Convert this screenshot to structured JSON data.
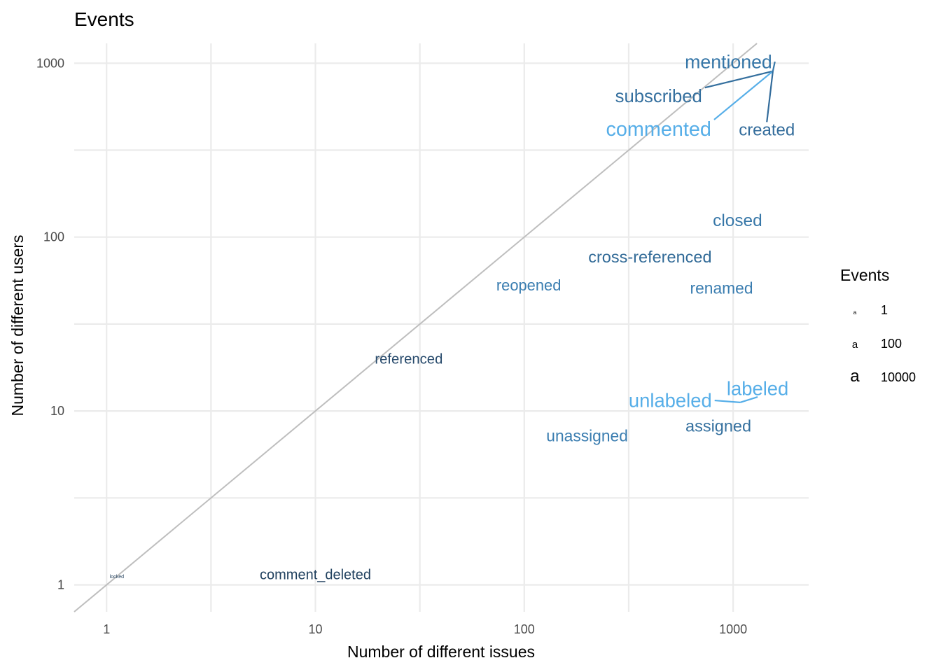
{
  "chart_data": {
    "type": "scatter",
    "title": "Events",
    "xlabel": "Number of different issues",
    "ylabel": "Number of different users",
    "x_scale": "log10",
    "y_scale": "log10",
    "xlim": [
      0.7,
      2300
    ],
    "ylim": [
      0.7,
      1300
    ],
    "x_ticks": [
      1,
      10,
      100,
      1000
    ],
    "y_ticks": [
      1,
      10,
      100,
      1000
    ],
    "x_tick_labels": [
      "1",
      "10",
      "100",
      "1000"
    ],
    "y_tick_labels": [
      "1",
      "10",
      "100",
      "1000"
    ],
    "grid": true,
    "reference_line": {
      "slope": 1,
      "intercept": 0,
      "color": "#bebebe"
    },
    "legend": {
      "title": "Events",
      "position": "right",
      "items": [
        {
          "label": "1",
          "value": 1
        },
        {
          "label": "100",
          "value": 100
        },
        {
          "label": "10000",
          "value": 10000
        }
      ]
    },
    "points": [
      {
        "label": "mentioned",
        "x": 1550,
        "y": 900,
        "events": 30000,
        "color": "#3777a8",
        "text_x": 950,
        "text_y": 1020
      },
      {
        "label": "subscribed",
        "x": 1550,
        "y": 900,
        "events": 20000,
        "color": "#346f9e",
        "text_x": 440,
        "text_y": 650
      },
      {
        "label": "commented",
        "x": 1550,
        "y": 900,
        "events": 70000,
        "color": "#56aee8",
        "text_x": 440,
        "text_y": 420
      },
      {
        "label": "created",
        "x": 1550,
        "y": 900,
        "events": 10000,
        "color": "#336c9b",
        "text_x": 1450,
        "text_y": 415
      },
      {
        "label": "closed",
        "x": 1050,
        "y": 125,
        "events": 12000,
        "color": "#3777a8"
      },
      {
        "label": "cross-referenced",
        "x": 400,
        "y": 77,
        "events": 8000,
        "color": "#316a97"
      },
      {
        "label": "reopened",
        "x": 105,
        "y": 53,
        "events": 4000,
        "color": "#3a7db0"
      },
      {
        "label": "renamed",
        "x": 880,
        "y": 51,
        "events": 6000,
        "color": "#3a7db0"
      },
      {
        "label": "referenced",
        "x": 28,
        "y": 20,
        "events": 2000,
        "color": "#26496b"
      },
      {
        "label": "labeled",
        "x": 1080,
        "y": 11.2,
        "events": 40000,
        "color": "#56aee8",
        "text_x": 1310,
        "text_y": 13.5
      },
      {
        "label": "unlabeled",
        "x": 1080,
        "y": 11.2,
        "events": 40000,
        "color": "#56aee8",
        "text_x": 500,
        "text_y": 11.5
      },
      {
        "label": "assigned",
        "x": 850,
        "y": 8.2,
        "events": 8000,
        "color": "#36719f"
      },
      {
        "label": "unassigned",
        "x": 200,
        "y": 7.2,
        "events": 6000,
        "color": "#3a7db0"
      },
      {
        "label": "comment_deleted",
        "x": 10,
        "y": 1.15,
        "events": 1800,
        "color": "#21415f"
      },
      {
        "label": "locked",
        "x": 1.12,
        "y": 1.12,
        "events": 1,
        "color": "#1f3d5a"
      }
    ]
  }
}
